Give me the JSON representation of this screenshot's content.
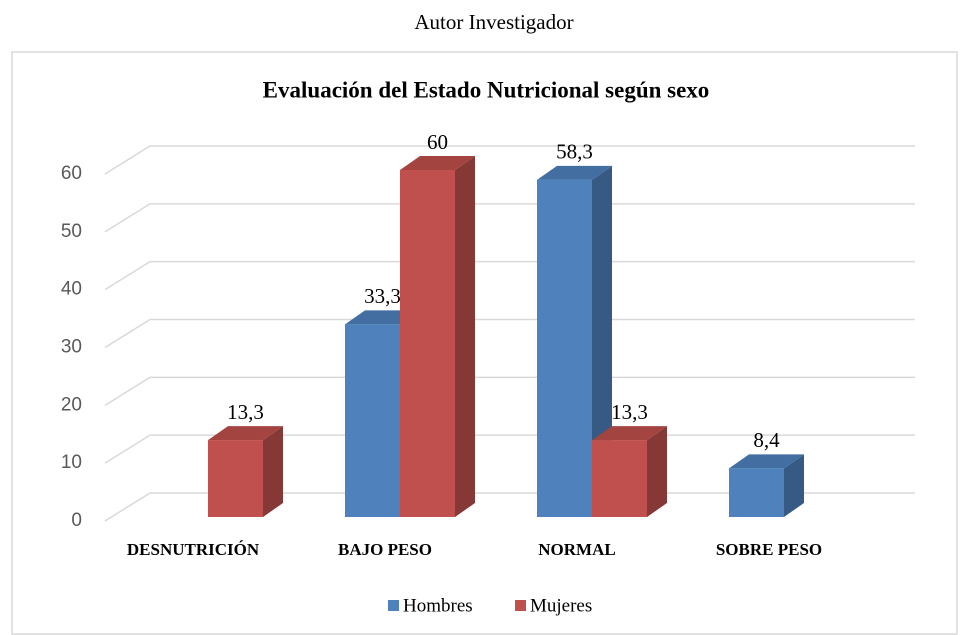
{
  "caption": "Autor Investigador",
  "chart_data": {
    "type": "bar3d",
    "title": "Evaluación del Estado Nutricional  según sexo",
    "categories": [
      "DESNUTRICIÓN",
      "BAJO PESO",
      "NORMAL",
      "SOBRE PESO"
    ],
    "series": [
      {
        "name": "Hombres",
        "color": "#4f81bd",
        "values": [
          null,
          33.3,
          58.3,
          8.4
        ],
        "value_labels": [
          null,
          "33,3",
          "58,3",
          "8,4"
        ]
      },
      {
        "name": "Mujeres",
        "color": "#c0504d",
        "values": [
          13.3,
          60,
          13.3,
          null
        ],
        "value_labels": [
          "13,3",
          "60",
          "13,3",
          null
        ]
      }
    ],
    "ylim": [
      0,
      60
    ],
    "yticks": [
      0,
      10,
      20,
      30,
      40,
      50,
      60
    ],
    "grid": true,
    "legend": "bottom"
  }
}
